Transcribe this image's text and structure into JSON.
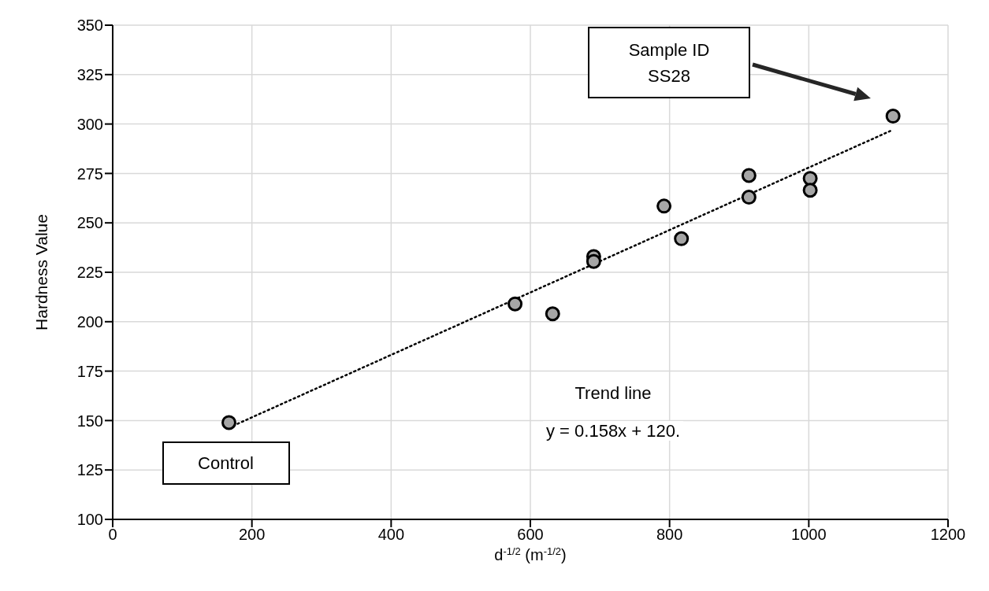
{
  "chart_data": {
    "type": "scatter",
    "xlabel": "d$^{-1/2}$ (m$^{-1/2}$)",
    "ylabel": "Hardness Value",
    "xlim": [
      0,
      1200
    ],
    "xticks": [
      0,
      200,
      400,
      600,
      800,
      1000,
      1200
    ],
    "ylim": [
      100,
      350
    ],
    "yticks": [
      100,
      125,
      150,
      175,
      200,
      225,
      250,
      275,
      300,
      325,
      350
    ],
    "grid": true,
    "legend": false,
    "marker": "circle",
    "series": [
      {
        "color": "#a6a6a6",
        "x": [
          167,
          578,
          632,
          691,
          691,
          792,
          817,
          914,
          914,
          1002,
          1002,
          1121
        ],
        "values": [
          149,
          209,
          204,
          233,
          230.5,
          258.5,
          242,
          274,
          263,
          272.5,
          266.5,
          304
        ]
      },
      {
        "type": "line",
        "color": "#000000",
        "line_style": "dotted",
        "marker": "none",
        "x": [
          167,
          1121
        ],
        "values": [
          146.4,
          297.1
        ]
      }
    ],
    "annotations": [
      {
        "text": "Control",
        "x": 167,
        "y": 149
      },
      "Sample ID\nSS28",
      "Trend line\ny = 0.158x + 120."
    ]
  }
}
